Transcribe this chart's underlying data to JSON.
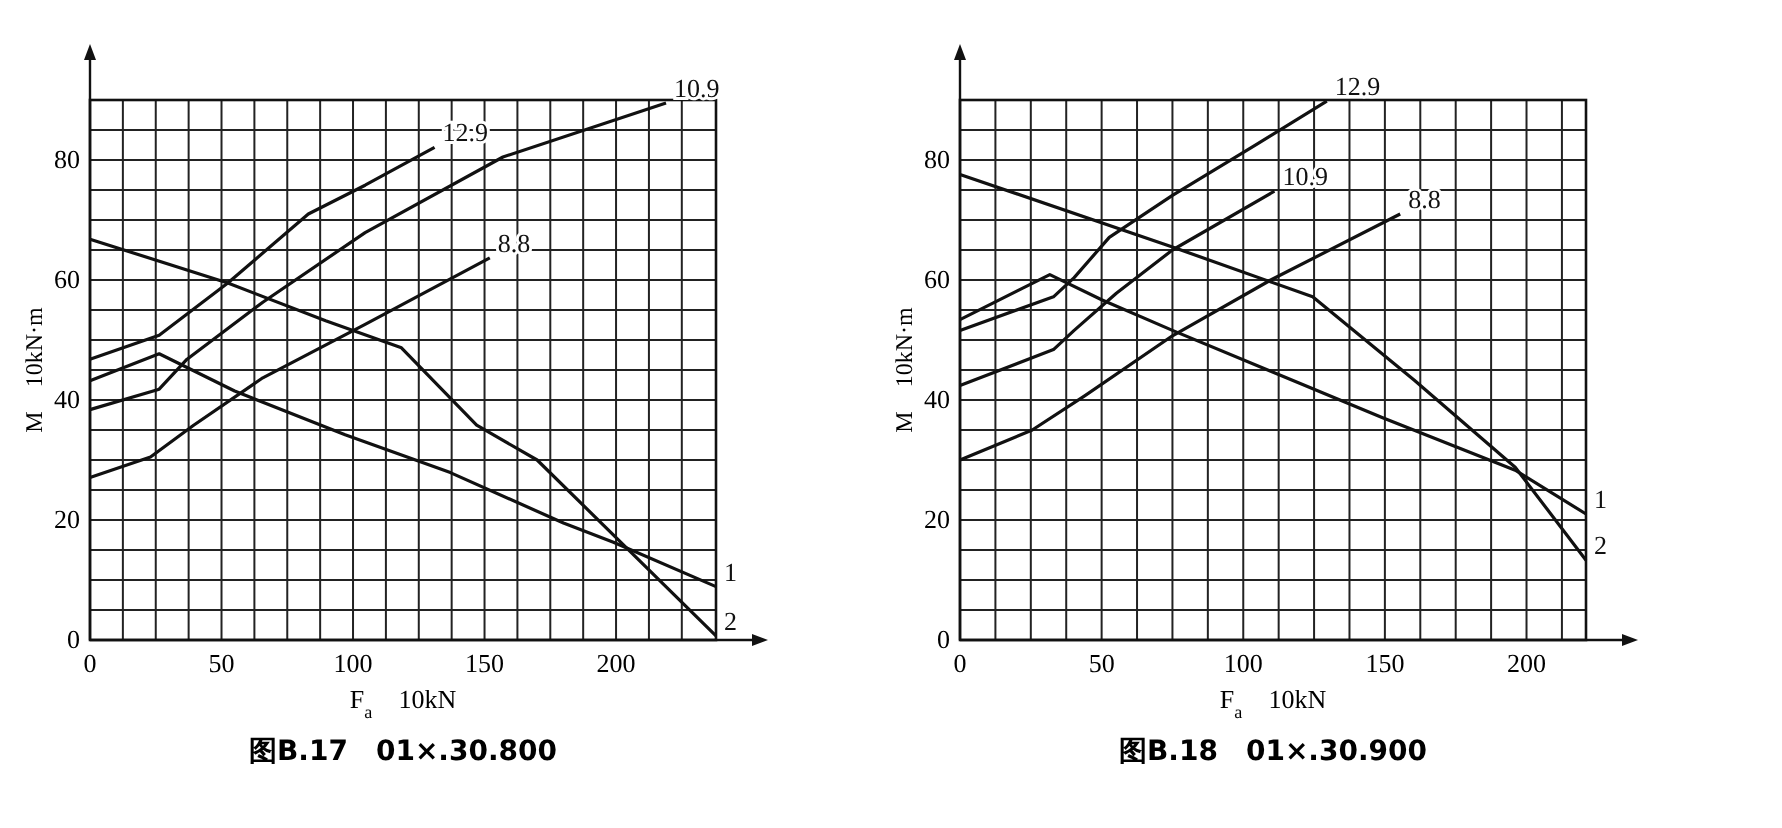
{
  "chart_data": [
    {
      "type": "line",
      "title": "图B.17　01×.30.800",
      "xlabel": "F$_{a}$　10kN",
      "ylabel": "M　10kN·m",
      "xlim": [
        0,
        238
      ],
      "ylim": [
        0,
        90
      ],
      "xticks": [
        0,
        {
          "value": 12.5,
          "label": null
        },
        {
          "value": 25,
          "label": null
        },
        {
          "value": 37.5,
          "label": null
        },
        50,
        {
          "value": 62.5,
          "label": null
        },
        {
          "value": 75,
          "label": null
        },
        {
          "value": 87.5,
          "label": null
        },
        100,
        {
          "value": 112.5,
          "label": null
        },
        {
          "value": 125,
          "label": null
        },
        {
          "value": 137.5,
          "label": null
        },
        150,
        {
          "value": 162.5,
          "label": null
        },
        {
          "value": 175,
          "label": null
        },
        {
          "value": 187.5,
          "label": null
        },
        200,
        {
          "value": 212.5,
          "label": null
        },
        {
          "value": 225,
          "label": null
        }
      ],
      "yticks": [
        0,
        {
          "value": 5,
          "label": null
        },
        {
          "value": 10,
          "label": null
        },
        {
          "value": 15,
          "label": null
        },
        20,
        {
          "value": 25,
          "label": null
        },
        {
          "value": 30,
          "label": null
        },
        {
          "value": 35,
          "label": null
        },
        40,
        {
          "value": 45,
          "label": null
        },
        {
          "value": 50,
          "label": null
        },
        {
          "value": 55,
          "label": null
        },
        60,
        {
          "value": 65,
          "label": null
        },
        {
          "value": 70,
          "label": null
        },
        {
          "value": 75,
          "label": null
        },
        80,
        {
          "value": 85,
          "label": null
        }
      ],
      "grid": true,
      "series": [
        {
          "name": "12.9",
          "color": "#111111",
          "x": [
            0,
            26.3,
            52.4,
            83,
            104.6,
            131
          ],
          "values": [
            46.8,
            50.8,
            59.5,
            71,
            75.8,
            82.1
          ]
        },
        {
          "name": "10.9",
          "color": "#111111",
          "x": [
            0,
            26.3,
            36.9,
            65.7,
            104.6,
            157,
            219
          ],
          "values": [
            38.4,
            41.8,
            46.8,
            56.3,
            67.9,
            80.5,
            89.5
          ]
        },
        {
          "name": "8.8",
          "color": "#111111",
          "x": [
            0,
            23,
            39.4,
            65.7,
            104.6,
            152
          ],
          "values": [
            27.1,
            30.5,
            35.8,
            43.7,
            52.6,
            63.7
          ]
        },
        {
          "name": "1",
          "color": "#111111",
          "x": [
            0,
            26.3,
            55,
            97,
            137,
            180,
            199,
            238
          ],
          "values": [
            43.2,
            47.7,
            41.5,
            34.2,
            27.9,
            19.5,
            16.3,
            8.9
          ]
        },
        {
          "name": "2",
          "color": "#111111",
          "x": [
            0,
            52.4,
            89.6,
            118.4,
            147,
            170,
            238
          ],
          "values": [
            66.8,
            59.5,
            53.2,
            48.7,
            35.8,
            30,
            0.7
          ]
        }
      ]
    },
    {
      "type": "line",
      "title": "图B.18　01×.30.900",
      "xlabel": "F$_{a}$　10kN",
      "ylabel": "M　10kN·m",
      "xlim": [
        0,
        221
      ],
      "ylim": [
        0,
        90
      ],
      "xticks": [
        0,
        {
          "value": 12.5,
          "label": null
        },
        {
          "value": 25,
          "label": null
        },
        {
          "value": 37.5,
          "label": null
        },
        50,
        {
          "value": 62.5,
          "label": null
        },
        {
          "value": 75,
          "label": null
        },
        {
          "value": 87.5,
          "label": null
        },
        100,
        {
          "value": 112.5,
          "label": null
        },
        {
          "value": 125,
          "label": null
        },
        {
          "value": 137.5,
          "label": null
        },
        150,
        {
          "value": 162.5,
          "label": null
        },
        {
          "value": 175,
          "label": null
        },
        {
          "value": 187.5,
          "label": null
        },
        200,
        {
          "value": 212.5,
          "label": null
        }
      ],
      "yticks": [
        0,
        {
          "value": 5,
          "label": null
        },
        {
          "value": 10,
          "label": null
        },
        {
          "value": 15,
          "label": null
        },
        20,
        {
          "value": 25,
          "label": null
        },
        {
          "value": 30,
          "label": null
        },
        {
          "value": 35,
          "label": null
        },
        40,
        {
          "value": 45,
          "label": null
        },
        {
          "value": 50,
          "label": null
        },
        {
          "value": 55,
          "label": null
        },
        60,
        {
          "value": 65,
          "label": null
        },
        {
          "value": 70,
          "label": null
        },
        {
          "value": 75,
          "label": null
        },
        80,
        {
          "value": 85,
          "label": null
        }
      ],
      "grid": true,
      "series": [
        {
          "name": "12.9",
          "color": "#111111",
          "x": [
            0,
            33,
            40.3,
            52.7,
            75,
            104.7,
            129.5
          ],
          "values": [
            51.6,
            57.2,
            60.4,
            67.1,
            74.1,
            82.6,
            89.8
          ]
        },
        {
          "name": "10.9",
          "color": "#111111",
          "x": [
            0,
            33,
            40.3,
            55.2,
            75,
            111
          ],
          "values": [
            42.4,
            48.4,
            51.6,
            57.8,
            65,
            74.8
          ]
        },
        {
          "name": "8.8",
          "color": "#111111",
          "x": [
            0,
            25.5,
            44,
            75,
            109.7,
            155.4
          ],
          "values": [
            30,
            35,
            40.7,
            50.7,
            60,
            71
          ]
        },
        {
          "name": "1",
          "color": "#111111",
          "x": [
            0,
            31.7,
            50,
            75,
            109.7,
            149,
            196,
            221
          ],
          "values": [
            53.4,
            60.9,
            56.7,
            51.6,
            44.8,
            37.1,
            28.3,
            21
          ]
        },
        {
          "name": "2",
          "color": "#111111",
          "x": [
            0,
            75,
            124.5,
            160.4,
            196,
            221
          ],
          "values": [
            77.6,
            65.5,
            57.2,
            43.3,
            28.8,
            13.3
          ]
        }
      ]
    }
  ]
}
